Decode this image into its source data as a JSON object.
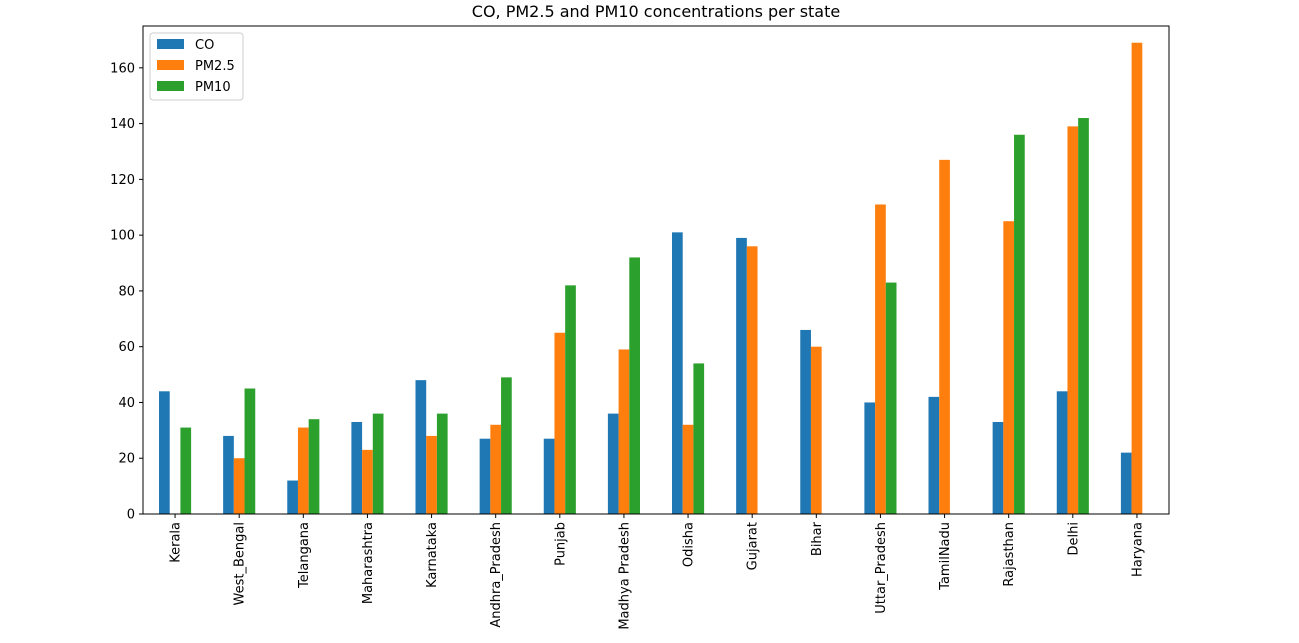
{
  "chart_data": {
    "type": "bar",
    "title": "CO, PM2.5 and PM10 concentrations per state",
    "xlabel": "",
    "ylabel": "",
    "ylim": [
      0,
      175
    ],
    "yticks": [
      0,
      20,
      40,
      60,
      80,
      100,
      120,
      140,
      160
    ],
    "grid": false,
    "legend_position": "top-left",
    "categories": [
      "Kerala",
      "West_Bengal",
      "Telangana",
      "Maharashtra",
      "Karnataka",
      "Andhra_Pradesh",
      "Punjab",
      "Madhya Pradesh",
      "Odisha",
      "Gujarat",
      "Bihar",
      "Uttar_Pradesh",
      "TamilNadu",
      "Rajasthan",
      "Delhi",
      "Haryana"
    ],
    "series": [
      {
        "name": "CO",
        "color": "#1f77b4",
        "values": [
          44,
          28,
          12,
          33,
          48,
          27,
          27,
          36,
          101,
          99,
          66,
          40,
          42,
          33,
          44,
          22
        ]
      },
      {
        "name": "PM2.5",
        "color": "#ff7f0e",
        "values": [
          null,
          20,
          31,
          23,
          28,
          32,
          65,
          59,
          32,
          96,
          60,
          111,
          127,
          105,
          139,
          169
        ]
      },
      {
        "name": "PM10",
        "color": "#2ca02c",
        "values": [
          31,
          45,
          34,
          36,
          36,
          49,
          82,
          92,
          54,
          null,
          null,
          83,
          null,
          136,
          142,
          null
        ]
      }
    ]
  }
}
